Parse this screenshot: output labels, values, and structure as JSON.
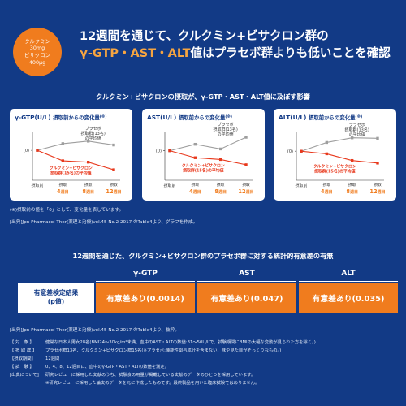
{
  "badge": {
    "line1": "クルクミン",
    "line2": "30mg",
    "line3": "ビサクロン",
    "line4": "400μg"
  },
  "headline": {
    "line1": "12週間を通じて、クルクミン+ビサクロン群の",
    "line2_highlight": "γ-GTP・AST・ALT",
    "line2_rest": "値はプラセボ群よりも低いことを確認"
  },
  "section1_title": "クルクミン+ビサクロンの摂取が、γ-GTP・AST・ALT値に及ぼす影響",
  "chart_data": [
    {
      "type": "line",
      "title": "γ-GTP(U/L)",
      "subtitle": "摂取前からの変化量",
      "subtitle_mark": "(※)",
      "categories": [
        "摂取前",
        "4週目",
        "8週目",
        "12週目"
      ],
      "x_label_prefix": "摂取",
      "y_tick_label": "(0)",
      "ylim": [
        -14,
        9
      ],
      "series": [
        {
          "name": "プラセボ摂取群(13名)の平均値",
          "color": "#9e9e9e",
          "values": [
            0,
            3.5,
            4.8,
            2.8
          ]
        },
        {
          "name": "クルクミン+ビサクロン摂取群(15名)の平均値",
          "color": "#e8381c",
          "values": [
            0,
            -5.5,
            -6.2,
            -10.2
          ]
        }
      ],
      "grid": false
    },
    {
      "type": "line",
      "title": "AST(U/L)",
      "subtitle": "摂取前からの変化量",
      "subtitle_mark": "(※)",
      "categories": [
        "摂取前",
        "4週目",
        "8週目",
        "12週目"
      ],
      "x_label_prefix": "摂取",
      "y_tick_label": "(0)",
      "ylim": [
        -9,
        6
      ],
      "series": [
        {
          "name": "プラセボ摂取群(13名)の平均値",
          "color": "#9e9e9e",
          "values": [
            0,
            2.2,
            0.6,
            4.6
          ]
        },
        {
          "name": "クルクミン+ビサクロン摂取群(15名)の平均値",
          "color": "#e8381c",
          "values": [
            0,
            -2.4,
            -3.0,
            -4.8
          ]
        }
      ],
      "grid": false
    },
    {
      "type": "line",
      "title": "ALT(U/L)",
      "subtitle": "摂取前からの変化量",
      "subtitle_mark": "(※)",
      "categories": [
        "摂取前",
        "4週目",
        "8週目",
        "12週目"
      ],
      "x_label_prefix": "摂取",
      "y_tick_label": "(0)",
      "ylim": [
        -10,
        7
      ],
      "series": [
        {
          "name": "プラセボ摂取群(13名)の平均値",
          "color": "#9e9e9e",
          "values": [
            0,
            3.4,
            5.2,
            5.0
          ]
        },
        {
          "name": "クルクミン+ビサクロン摂取群(15名)の平均値",
          "color": "#e8381c",
          "values": [
            0,
            -1.0,
            -3.6,
            -4.6
          ]
        }
      ],
      "grid": false
    }
  ],
  "footnotes1": {
    "note": "(※)摂取前の値を「0」として、変化量を表しています。",
    "source": "[出典]Jpn Pharmacol Ther(薬理と治療)vol.45 No.2 2017 のTable4より、グラフを作成。"
  },
  "section2_title": "12週間を通じた、クルクミン+ビサクロン群のプラセボ群に対する統計的有意差の有無",
  "table": {
    "columns": [
      "γ-GTP",
      "AST",
      "ALT"
    ],
    "row_label_line1": "有意差検定結果",
    "row_label_line2": "(p値)",
    "values": [
      "有意差あり(0.0014)",
      "有意差あり(0.047)",
      "有意差あり(0.035)"
    ]
  },
  "source2": "[出典]Jpn Pharmacol Ther(薬理と治療)vol.45 No.2 2017 のTable4より、抜粋。",
  "notes": [
    {
      "key": "【 対　象 】",
      "value": "健常な日本人男女28名(BMI24〜30kg/m²未満、血中のAST・ALTの数値:31〜50U/Lで、試験期間にBMIの大幅な変動が見られた方を除く。)"
    },
    {
      "key": "【 摂 取 群 】",
      "value": "プラセボ群13名、クルクミン+ビサクロン群15名(※プラセボ:機能性関与成分を含まない、味や見た目がそっくりなもの。)"
    },
    {
      "key": "【摂取期間】",
      "value": "12週間"
    },
    {
      "key": "【 試　験 】",
      "value": "0、4、8、12週目に、血中のγ-GTP・AST・ALTの数値を測定。"
    },
    {
      "key": "[出典について]",
      "value": "研究レビューに採用した文献のうち、試験食の用量が掲載している文献のデータのひとつを採用しています。"
    }
  ],
  "notes_sub": "※研究レビューに採用した論文のデータを元に作成したものです。最終製品を用いた臨床試験ではありません。"
}
